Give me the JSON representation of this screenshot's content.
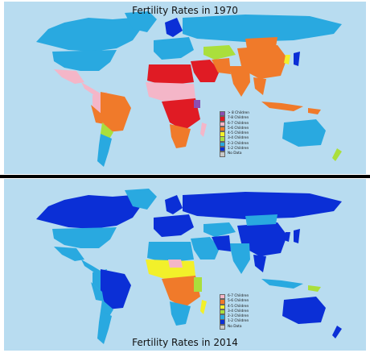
{
  "maps": [
    {
      "title": "Fertility Rates in 1970",
      "legend": [
        {
          "label": "> 8 Children",
          "color": "#8b4fb3"
        },
        {
          "label": "7-8 Children",
          "color": "#e01b24"
        },
        {
          "label": "6-7 Children",
          "color": "#f4b6c8"
        },
        {
          "label": "5-6 Children",
          "color": "#f07a2a"
        },
        {
          "label": "4-5 Children",
          "color": "#f2f02a"
        },
        {
          "label": "3-4 Children",
          "color": "#aadf3c"
        },
        {
          "label": "2-3 Children",
          "color": "#29a9e0"
        },
        {
          "label": "1-2 Children",
          "color": "#0b2fd6"
        },
        {
          "label": "No Data",
          "color": "#c8c8c8"
        }
      ]
    },
    {
      "title": "Fertility Rates in 2014",
      "legend": [
        {
          "label": "6-7 Children",
          "color": "#f4b6c8"
        },
        {
          "label": "5-6 Children",
          "color": "#f07a2a"
        },
        {
          "label": "4-5 Children",
          "color": "#f2f02a"
        },
        {
          "label": "3-4 Children",
          "color": "#aadf3c"
        },
        {
          "label": "2-3 Children",
          "color": "#29a9e0"
        },
        {
          "label": "1-2 Children",
          "color": "#0b2fd6"
        },
        {
          "label": "No Data",
          "color": "#c8c8c8"
        }
      ]
    }
  ],
  "colors": {
    "ocean": "#b8dcf0",
    "divider": "#000000"
  }
}
